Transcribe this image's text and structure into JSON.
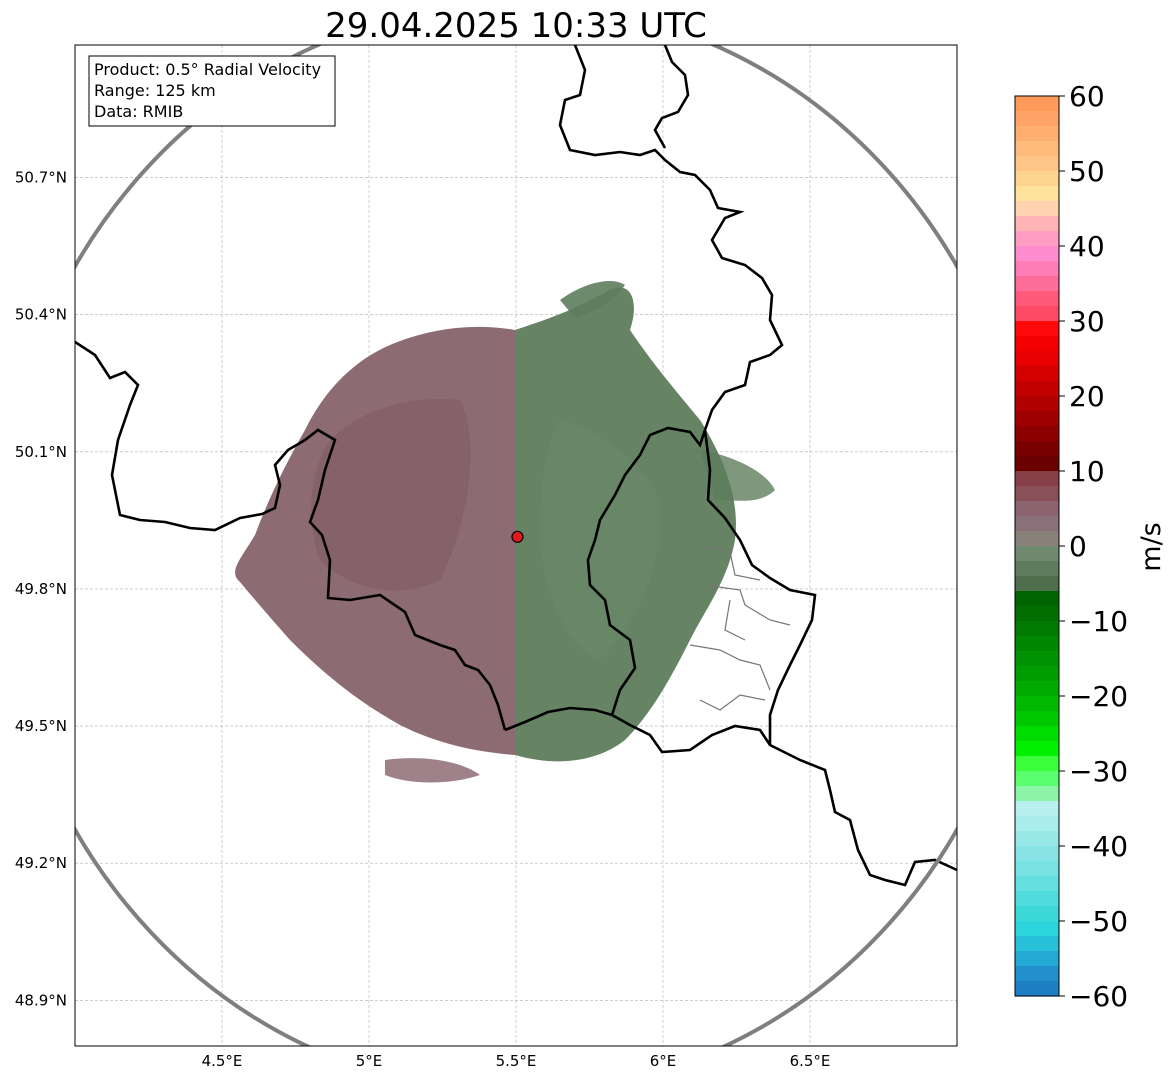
{
  "title": "29.04.2025 10:33 UTC",
  "info_box": {
    "product": "Product: 0.5° Radial Velocity",
    "range": "Range: 125 km",
    "data": "Data: RMIB"
  },
  "axes": {
    "lon_range": [
      4.0,
      7.0
    ],
    "lat_range": [
      48.8,
      50.99
    ],
    "x_ticks": [
      {
        "value": 4.5,
        "label": "4.5°E"
      },
      {
        "value": 5.0,
        "label": "5°E"
      },
      {
        "value": 5.5,
        "label": "5.5°E"
      },
      {
        "value": 6.0,
        "label": "6°E"
      },
      {
        "value": 6.5,
        "label": "6.5°E"
      }
    ],
    "y_ticks": [
      {
        "value": 48.9,
        "label": "48.9°N"
      },
      {
        "value": 49.2,
        "label": "49.2°N"
      },
      {
        "value": 49.5,
        "label": "49.5°N"
      },
      {
        "value": 49.8,
        "label": "49.8°N"
      },
      {
        "value": 50.1,
        "label": "50.1°N"
      },
      {
        "value": 50.4,
        "label": "50.4°N"
      },
      {
        "value": 50.7,
        "label": "50.7°N"
      }
    ],
    "grid": true
  },
  "radar_site": {
    "lon": 5.505,
    "lat": 49.914,
    "color": "#e31a1c"
  },
  "colorbar": {
    "label": "m/s",
    "min": -60,
    "max": 60,
    "ticks": [
      {
        "value": 60,
        "label": "60"
      },
      {
        "value": 50,
        "label": "50"
      },
      {
        "value": 40,
        "label": "40"
      },
      {
        "value": 30,
        "label": "30"
      },
      {
        "value": 20,
        "label": "20"
      },
      {
        "value": 10,
        "label": "10"
      },
      {
        "value": 0,
        "label": "0"
      },
      {
        "value": -10,
        "label": "−10"
      },
      {
        "value": -20,
        "label": "−20"
      },
      {
        "value": -30,
        "label": "−30"
      },
      {
        "value": -40,
        "label": "−40"
      },
      {
        "value": -50,
        "label": "−50"
      },
      {
        "value": -60,
        "label": "−60"
      }
    ],
    "stops": [
      {
        "from": 58,
        "to": 60,
        "color": "#ff9a5a"
      },
      {
        "from": 56,
        "to": 58,
        "color": "#ffa466"
      },
      {
        "from": 54,
        "to": 56,
        "color": "#ffb070"
      },
      {
        "from": 52,
        "to": 54,
        "color": "#ffbb7c"
      },
      {
        "from": 50,
        "to": 52,
        "color": "#ffc586"
      },
      {
        "from": 48,
        "to": 50,
        "color": "#ffd48f"
      },
      {
        "from": 46,
        "to": 48,
        "color": "#ffe29c"
      },
      {
        "from": 44,
        "to": 46,
        "color": "#ffd3b0"
      },
      {
        "from": 42,
        "to": 44,
        "color": "#ffb3b3"
      },
      {
        "from": 40,
        "to": 42,
        "color": "#ff9ec2"
      },
      {
        "from": 38,
        "to": 40,
        "color": "#ff8ccf"
      },
      {
        "from": 36,
        "to": 38,
        "color": "#ff7eb8"
      },
      {
        "from": 34,
        "to": 36,
        "color": "#ff6e9a"
      },
      {
        "from": 32,
        "to": 34,
        "color": "#ff5a7a"
      },
      {
        "from": 30,
        "to": 32,
        "color": "#ff4a66"
      },
      {
        "from": 28,
        "to": 30,
        "color": "#ff0a0a"
      },
      {
        "from": 26,
        "to": 28,
        "color": "#f50000"
      },
      {
        "from": 24,
        "to": 26,
        "color": "#e60000"
      },
      {
        "from": 22,
        "to": 24,
        "color": "#d40000"
      },
      {
        "from": 20,
        "to": 22,
        "color": "#c20000"
      },
      {
        "from": 18,
        "to": 20,
        "color": "#b00000"
      },
      {
        "from": 16,
        "to": 18,
        "color": "#9e0000"
      },
      {
        "from": 14,
        "to": 16,
        "color": "#8c0000"
      },
      {
        "from": 12,
        "to": 14,
        "color": "#7a0000"
      },
      {
        "from": 10,
        "to": 12,
        "color": "#6a0000"
      },
      {
        "from": 8,
        "to": 10,
        "color": "#874047"
      },
      {
        "from": 6,
        "to": 8,
        "color": "#8a5058"
      },
      {
        "from": 4,
        "to": 6,
        "color": "#8b6470"
      },
      {
        "from": 2,
        "to": 4,
        "color": "#8a7078"
      },
      {
        "from": 0,
        "to": 2,
        "color": "#888079"
      },
      {
        "from": -2,
        "to": 0,
        "color": "#6f8a6e"
      },
      {
        "from": -4,
        "to": -2,
        "color": "#5e7d5c"
      },
      {
        "from": -6,
        "to": -4,
        "color": "#4e6e4c"
      },
      {
        "from": -8,
        "to": -6,
        "color": "#006400"
      },
      {
        "from": -10,
        "to": -8,
        "color": "#006e00"
      },
      {
        "from": -12,
        "to": -10,
        "color": "#007a00"
      },
      {
        "from": -14,
        "to": -12,
        "color": "#008600"
      },
      {
        "from": -16,
        "to": -14,
        "color": "#009200"
      },
      {
        "from": -18,
        "to": -16,
        "color": "#009e00"
      },
      {
        "from": -20,
        "to": -18,
        "color": "#00aa00"
      },
      {
        "from": -22,
        "to": -20,
        "color": "#00b800"
      },
      {
        "from": -24,
        "to": -22,
        "color": "#00c800"
      },
      {
        "from": -26,
        "to": -24,
        "color": "#00dc00"
      },
      {
        "from": -28,
        "to": -26,
        "color": "#00f000"
      },
      {
        "from": -30,
        "to": -28,
        "color": "#3cff3c"
      },
      {
        "from": -32,
        "to": -30,
        "color": "#5aff6e"
      },
      {
        "from": -34,
        "to": -32,
        "color": "#8cf5a8"
      },
      {
        "from": -36,
        "to": -34,
        "color": "#b8f0f0"
      },
      {
        "from": -38,
        "to": -36,
        "color": "#a8ecec"
      },
      {
        "from": -40,
        "to": -38,
        "color": "#98e8e8"
      },
      {
        "from": -42,
        "to": -40,
        "color": "#88e4e4"
      },
      {
        "from": -44,
        "to": -42,
        "color": "#78e2e2"
      },
      {
        "from": -46,
        "to": -44,
        "color": "#64e0e0"
      },
      {
        "from": -48,
        "to": -46,
        "color": "#50dcdc"
      },
      {
        "from": -50,
        "to": -48,
        "color": "#3cd8d8"
      },
      {
        "from": -52,
        "to": -50,
        "color": "#2cd4dc"
      },
      {
        "from": -54,
        "to": -52,
        "color": "#28c0d8"
      },
      {
        "from": -56,
        "to": -54,
        "color": "#24a8d4"
      },
      {
        "from": -58,
        "to": -56,
        "color": "#2290cc"
      },
      {
        "from": -60,
        "to": -58,
        "color": "#1f7fc4"
      }
    ]
  }
}
